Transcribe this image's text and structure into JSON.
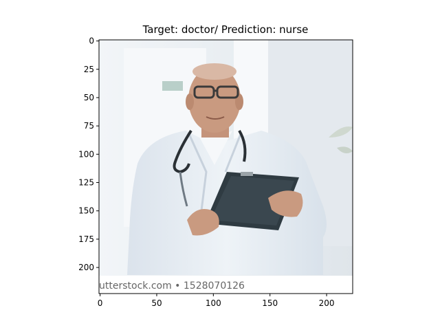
{
  "figure": {
    "title": "Target: doctor/ Prediction: nurse",
    "image": {
      "subject": "elderly male doctor in white coat with stethoscope holding a dark clipboard",
      "watermark_text": "utterstock.com • 1528070126"
    }
  },
  "axes": {
    "x_ticks": [
      "0",
      "50",
      "100",
      "150",
      "200"
    ],
    "y_ticks": [
      "0",
      "25",
      "50",
      "75",
      "100",
      "125",
      "150",
      "175",
      "200"
    ],
    "xlim": [
      0,
      224
    ],
    "ylim": [
      224,
      0
    ]
  },
  "colors": {
    "background_wall": "#eef2f5",
    "coat": "#e3eaf1",
    "skin": "#c99a80",
    "clipboard": "#2f3b42",
    "stethoscope": "#2a3035"
  }
}
